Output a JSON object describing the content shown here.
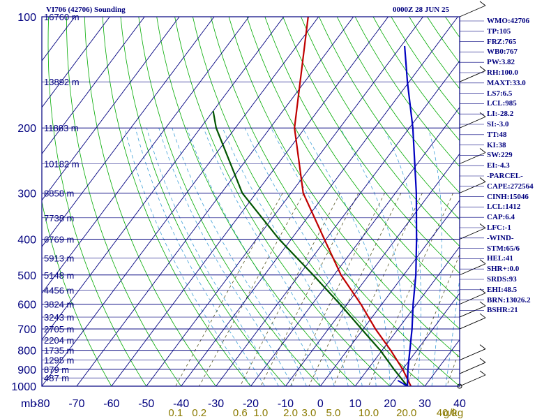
{
  "header": {
    "title": "VI706 (42706) Sounding",
    "datetime": "0000Z 28 JUN 25"
  },
  "colors": {
    "frame": "#00007f",
    "isotherm": "#00007f",
    "dry_adiabat": "#00aa00",
    "moist_adiabat": "#3fa0d8",
    "mixing_ratio": "#555522",
    "temperature": "#c00000",
    "dewpoint": "#005500",
    "parcel": "#0000c0",
    "wind_barb": "#000000",
    "mixing_ratio_label": "#8a7a00"
  },
  "indices": [
    "WMO:42706",
    "TP:105",
    "FRZ:765",
    "WB0:767",
    "PW:3.82",
    "RH:100.0",
    "MAXT:33.0",
    "LS7:6.5",
    "LCL:985",
    "LI:-28.2",
    "SI:-3.0",
    "TT:48",
    "KI:38",
    "SW:229",
    "EI:-4.3",
    "-PARCEL-",
    "CAPE:272564",
    "CINH:15046",
    "LCL:1412",
    "CAP:6.4",
    "LFC:-1",
    "-WIND-",
    "STM:65/6",
    "HEL:41",
    "SHR+:0.0",
    "SRDS:93",
    "EHI:48.5",
    "BRN:13026.2",
    "BSHR:21"
  ],
  "chart_data": {
    "type": "line",
    "title": "VI706 (42706) Sounding",
    "chart_kind": "skew-T log-P diagram",
    "y_scale": "log",
    "ylim": [
      1000,
      100
    ],
    "xlim": [
      -80,
      40
    ],
    "pressure_ticks": [
      {
        "label": "100",
        "p": 100
      },
      {
        "label": "200",
        "p": 200
      },
      {
        "label": "300",
        "p": 300
      },
      {
        "label": "400",
        "p": 400
      },
      {
        "label": "500",
        "p": 500
      },
      {
        "label": "600",
        "p": 600
      },
      {
        "label": "700",
        "p": 700
      },
      {
        "label": "800",
        "p": 800
      },
      {
        "label": "900",
        "p": 900
      },
      {
        "label": "1000",
        "p": 1000
      }
    ],
    "pressure_unit_label": "mb",
    "temp_ticks": [
      {
        "label": "-80",
        "t": -80
      },
      {
        "label": "-70",
        "t": -70
      },
      {
        "label": "-60",
        "t": -60
      },
      {
        "label": "-50",
        "t": -50
      },
      {
        "label": "-40",
        "t": -40
      },
      {
        "label": "-30",
        "t": -30
      },
      {
        "label": "-20",
        "t": -20
      },
      {
        "label": "-10",
        "t": -10
      },
      {
        "label": "0",
        "t": 0
      },
      {
        "label": "10",
        "t": 10
      },
      {
        "label": "20",
        "t": 20
      },
      {
        "label": "30",
        "t": 30
      },
      {
        "label": "40",
        "t": 40
      }
    ],
    "height_labels": [
      {
        "label": "16760 m",
        "p": 100
      },
      {
        "label": "13892 m",
        "p": 150
      },
      {
        "label": "11883 m",
        "p": 200
      },
      {
        "label": "10182 m",
        "p": 250
      },
      {
        "label": "8858 m",
        "p": 300
      },
      {
        "label": "7738 m",
        "p": 350
      },
      {
        "label": "6769 m",
        "p": 400
      },
      {
        "label": "5913 m",
        "p": 450
      },
      {
        "label": "5148 m",
        "p": 500
      },
      {
        "label": "4456 m",
        "p": 550
      },
      {
        "label": "3824 m",
        "p": 600
      },
      {
        "label": "3243 m",
        "p": 650
      },
      {
        "label": "2705 m",
        "p": 700
      },
      {
        "label": "2204 m",
        "p": 750
      },
      {
        "label": "1735 m",
        "p": 800
      },
      {
        "label": "1295 m",
        "p": 850
      },
      {
        "label": "879 m",
        "p": 900
      },
      {
        "label": "487 m",
        "p": 950
      }
    ],
    "mixing_ratio_labels": [
      "0.1",
      "0.2",
      "0.6",
      "1.0",
      "2.0",
      "3.0",
      "5.0",
      "10.0",
      "20.0",
      "40.0"
    ],
    "mixing_ratio_unit": "g/kg",
    "series": [
      {
        "key": "temperature",
        "p": [
          1000,
          900,
          800,
          700,
          600,
          500,
          400,
          300,
          200,
          100
        ],
        "t": [
          26,
          20,
          12.5,
          3.5,
          -6,
          -18,
          -30.5,
          -46.5,
          -63,
          -83
        ]
      },
      {
        "key": "dewpoint",
        "p": [
          1000,
          900,
          800,
          700,
          600,
          500,
          400,
          300,
          200,
          180
        ],
        "t": [
          25,
          17.5,
          9.5,
          -0.5,
          -12,
          -26,
          -43.5,
          -64,
          -85.5,
          -90
        ]
      },
      {
        "key": "parcel",
        "p": [
          1000,
          900,
          800,
          700,
          600,
          500,
          400,
          300,
          200,
          150,
          120
        ],
        "t": [
          25,
          21.5,
          18,
          14,
          9,
          3.5,
          -4,
          -14,
          -29,
          -40.5,
          -49
        ]
      },
      {
        "key": "surface",
        "p": [
          1000,
          965
        ],
        "t": [
          25,
          21
        ]
      }
    ],
    "wind_levels_mb": [
      100,
      150,
      200,
      250,
      300,
      400,
      500,
      600,
      650,
      700,
      850,
      925,
      1000
    ]
  }
}
